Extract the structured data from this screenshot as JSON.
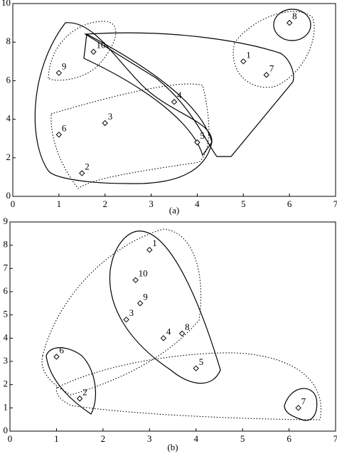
{
  "chart_data": [
    {
      "type": "scatter",
      "caption": "(a)",
      "x": [
        5,
        1.5,
        2,
        3.5,
        4,
        1,
        5.5,
        6,
        1,
        1.75
      ],
      "y": [
        7,
        1.2,
        3.8,
        4.9,
        2.8,
        3.2,
        6.3,
        9,
        6.4,
        7.5
      ],
      "point_labels": [
        "1",
        "2",
        "3",
        "4",
        "5",
        "6",
        "7",
        "8",
        "9",
        "10"
      ],
      "xlim": [
        0,
        7
      ],
      "ylim": [
        0,
        10
      ],
      "xticks": [
        0,
        1,
        2,
        3,
        4,
        5,
        6,
        7
      ],
      "yticks": [
        0,
        2,
        4,
        6,
        8,
        10
      ],
      "grid": false
    },
    {
      "type": "scatter",
      "caption": "(b)",
      "x": [
        3,
        1.5,
        2.5,
        3.3,
        4,
        1,
        6.2,
        3.7,
        2.8,
        2.7
      ],
      "y": [
        7.8,
        1.4,
        4.8,
        4.0,
        2.7,
        3.2,
        1.0,
        4.2,
        5.5,
        6.5
      ],
      "point_labels": [
        "1",
        "2",
        "3",
        "4",
        "5",
        "6",
        "7",
        "8",
        "9",
        "10"
      ],
      "xlim": [
        0,
        7
      ],
      "ylim": [
        0,
        9
      ],
      "xticks": [
        0,
        1,
        2,
        3,
        4,
        5,
        6,
        7
      ],
      "yticks": [
        0,
        1,
        2,
        3,
        4,
        5,
        6,
        7,
        8,
        9
      ],
      "grid": false
    }
  ]
}
